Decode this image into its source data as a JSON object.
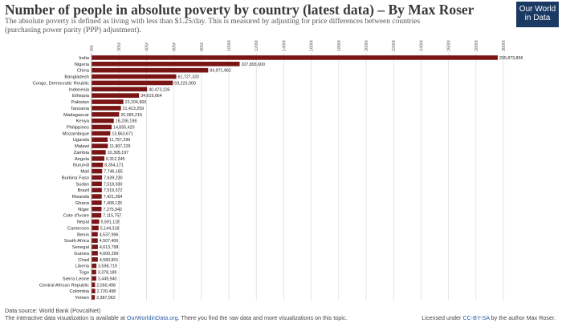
{
  "header": {
    "title": "Number of people in absolute poverty by country (latest data) – By Max Roser",
    "subtitle_line1": "The absolute poverty is defined as living with less than $1.25/day. This is measured by adjusting for price differences between countries",
    "subtitle_line2": "(purchasing power parity (PPP) adjustment).",
    "logo_line1": "Our World",
    "logo_line2": "in Data"
  },
  "footer": {
    "source": "Data source: World Bank (PovcalNet)",
    "interactive_pre": "The interactive data visualization is available at ",
    "interactive_link": "OurWorldinData.org",
    "interactive_post": ". There you find the raw data and more visualizations on this topic.",
    "license_pre": "Licensed under ",
    "license_link": "CC-BY-SA",
    "license_post": " by the author Max Roser."
  },
  "colors": {
    "bar": "#7a1515",
    "grid": "#d8d8d8",
    "text": "#222222"
  },
  "chart_data": {
    "type": "bar",
    "orientation": "horizontal",
    "xlim": [
      0,
      300000000
    ],
    "ticks": [
      0,
      20000000,
      40000000,
      60000000,
      80000000,
      100000000,
      120000000,
      140000000,
      160000000,
      180000000,
      200000000,
      220000000,
      240000000,
      260000000,
      280000000,
      300000000
    ],
    "tick_labels": [
      "0M",
      "20M",
      "40M",
      "60M",
      "80M",
      "100M",
      "120M",
      "140M",
      "160M",
      "180M",
      "200M",
      "220M",
      "240M",
      "260M",
      "280M",
      "300M"
    ],
    "grid": true,
    "categories": [
      "India",
      "Nigeria",
      "China",
      "Bangladesh",
      "Congo, Democratic Reublic",
      "Indonesia",
      "Ethiopia",
      "Pakistan",
      "Tanzania",
      "Madagascar",
      "Kenya",
      "Philippines",
      "Mozambique",
      "Uganda",
      "Malawi",
      "Zambia",
      "Angola",
      "Burundi",
      "Mali",
      "Burkina Faso",
      "Sudan",
      "Brazil",
      "Rwanda",
      "Ghana",
      "Niger",
      "Cote d'Ivoire",
      "Nepal",
      "Cameroon",
      "Benin",
      "South Africa",
      "Senegal",
      "Guinea",
      "Chad",
      "Liberia",
      "Togo",
      "Sierra Leone",
      "Central African Republic",
      "Colombia",
      "Yemen"
    ],
    "values": [
      295873856,
      107893600,
      84971962,
      61727320,
      59223000,
      40473235,
      34619664,
      23204960,
      21413259,
      20096219,
      16236198,
      14655420,
      13663671,
      11757299,
      11907229,
      10305197,
      9312245,
      8354171,
      7746165,
      7639230,
      7518930,
      7519372,
      7421264,
      7408125,
      7275942,
      7115757,
      5591118,
      5144318,
      4537996,
      4507406,
      4613798,
      4600299,
      4583801,
      3598719,
      3378189,
      3449940,
      2560498,
      2720498,
      2387062
    ],
    "value_labels": [
      "295,873,856",
      "107,893,600",
      "84,971,962",
      "61,727,320",
      "59,223,000",
      "40,473,235",
      "34,619,664",
      "23,204,960",
      "21,413,259",
      "20,096,219",
      "16,236,198",
      "14,655,420",
      "13,663,671",
      "11,757,299",
      "11,907,229",
      "10,305,197",
      "9,312,245",
      "8,354,171",
      "7,746,165",
      "7,639,230",
      "7,518,930",
      "7,519,372",
      "7,421,264",
      "7,408,125",
      "7,275,942",
      "7,115,757",
      "5,591,118",
      "5,144,318",
      "4,537,996",
      "4,507,406",
      "4,613,798",
      "4,600,299",
      "4,583,801",
      "3,598,719",
      "3,378,189",
      "3,449,940",
      "2,560,498",
      "2,720,498",
      "2,387,062"
    ]
  }
}
